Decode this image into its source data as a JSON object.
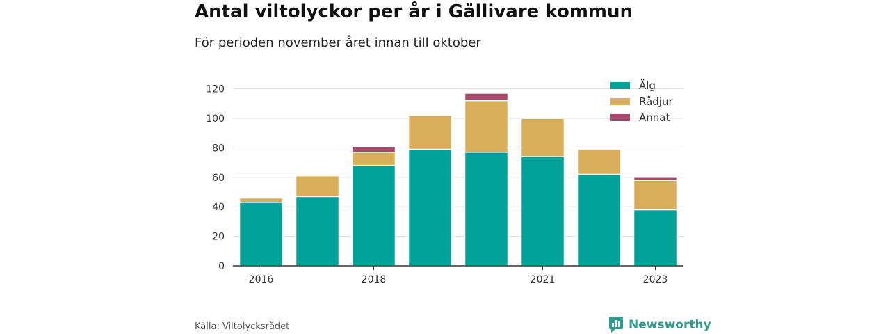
{
  "title": "Antal viltolyckor per år i Gällivare kommun",
  "subtitle": "För perioden november året innan till oktober",
  "source": "Källa: Viltolycksrådet",
  "brand": {
    "name": "Newsworthy",
    "icon": "newsworthy-logo-icon"
  },
  "colors": {
    "alg": "#00a29a",
    "radjur": "#d8ae5a",
    "annat": "#a7476a",
    "brand": "#2f9c8d"
  },
  "chart_data": {
    "type": "bar",
    "stacked": true,
    "categories": [
      "2016",
      "2017",
      "2018",
      "2019",
      "2020",
      "2021",
      "2022",
      "2023"
    ],
    "x_tick_labels": [
      "2016",
      "",
      "2018",
      "",
      "",
      "2021",
      "",
      "2023"
    ],
    "series": [
      {
        "name": "Älg",
        "values": [
          43,
          47,
          68,
          79,
          77,
          74,
          62,
          38
        ]
      },
      {
        "name": "Rådjur",
        "values": [
          3,
          14,
          9,
          23,
          35,
          26,
          17,
          20
        ]
      },
      {
        "name": "Annat",
        "values": [
          0,
          0,
          4,
          0,
          5,
          0,
          0,
          2
        ]
      }
    ],
    "ylim": [
      0,
      125
    ],
    "yticks": [
      0,
      20,
      40,
      60,
      80,
      100,
      120
    ],
    "grid": true,
    "legend": "top-right"
  }
}
